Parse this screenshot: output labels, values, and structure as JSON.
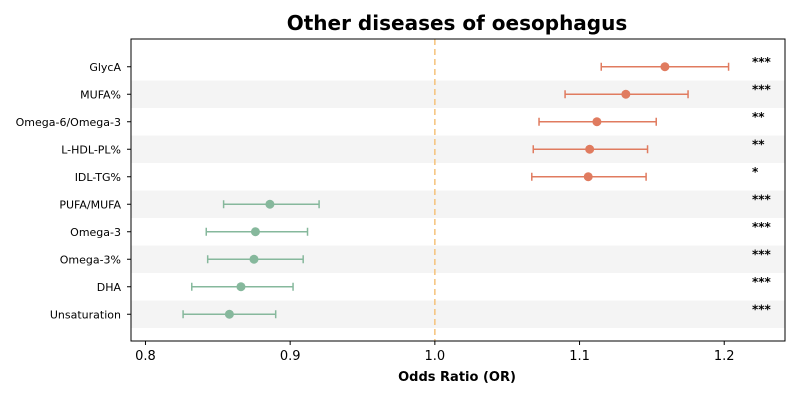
{
  "chart_data": {
    "type": "forest",
    "title": "Other diseases of oesophagus",
    "xlabel": "Odds Ratio (OR)",
    "xlim": [
      0.79,
      1.242
    ],
    "xticks": [
      0.8,
      0.9,
      1.0,
      1.1,
      1.2
    ],
    "xtick_labels": [
      "0.8",
      "0.9",
      "1.0",
      "1.1",
      "1.2"
    ],
    "reference_line": 1.0,
    "colors": {
      "increase": "#e07b5f",
      "decrease": "#86b89c",
      "reference": "#f5c27a",
      "band": "#f4f4f4"
    },
    "rows": [
      {
        "label": "GlycA",
        "or": 1.159,
        "lo": 1.115,
        "hi": 1.203,
        "sig": "***"
      },
      {
        "label": "MUFA%",
        "or": 1.132,
        "lo": 1.09,
        "hi": 1.175,
        "sig": "***"
      },
      {
        "label": "Omega-6/Omega-3",
        "or": 1.112,
        "lo": 1.072,
        "hi": 1.153,
        "sig": "**"
      },
      {
        "label": "L-HDL-PL%",
        "or": 1.107,
        "lo": 1.068,
        "hi": 1.147,
        "sig": "**"
      },
      {
        "label": "IDL-TG%",
        "or": 1.106,
        "lo": 1.067,
        "hi": 1.146,
        "sig": "*"
      },
      {
        "label": "PUFA/MUFA",
        "or": 0.886,
        "lo": 0.854,
        "hi": 0.92,
        "sig": "***"
      },
      {
        "label": "Omega-3",
        "or": 0.876,
        "lo": 0.842,
        "hi": 0.912,
        "sig": "***"
      },
      {
        "label": "Omega-3%",
        "or": 0.875,
        "lo": 0.843,
        "hi": 0.909,
        "sig": "***"
      },
      {
        "label": "DHA",
        "or": 0.866,
        "lo": 0.832,
        "hi": 0.902,
        "sig": "***"
      },
      {
        "label": "Unsaturation",
        "or": 0.858,
        "lo": 0.826,
        "hi": 0.89,
        "sig": "***"
      }
    ]
  }
}
